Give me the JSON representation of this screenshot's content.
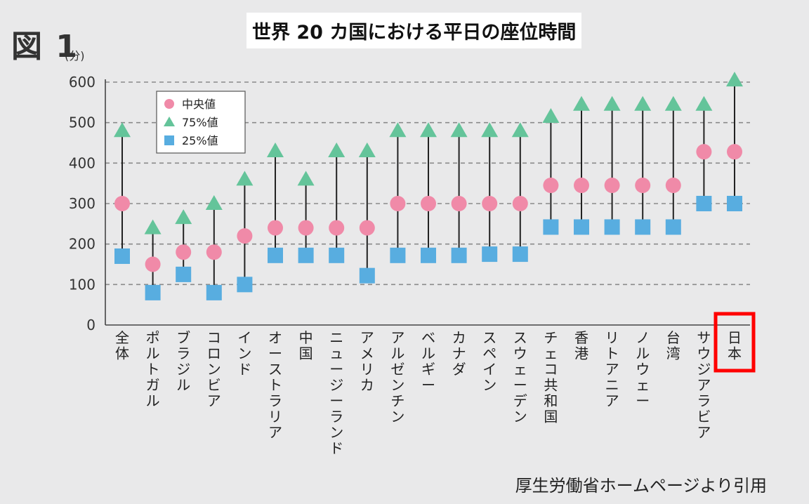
{
  "figure_label": "図 1",
  "title": "世界 20 カ国における平日の座位時間",
  "source_note": "厚生労働省ホームページより引用",
  "chart_data": {
    "type": "scatter",
    "title": "世界 20 カ国における平日の座位時間",
    "ylabel": "(分)",
    "xlabel": "",
    "ylim": [
      0,
      600
    ],
    "yticks": [
      0,
      100,
      200,
      300,
      400,
      500,
      600
    ],
    "grid": true,
    "legend_position": "top-left",
    "highlight_category": "日本",
    "highlight_color": "#ff0000",
    "categories": [
      "全体",
      "ポルトガル",
      "ブラジル",
      "コロンビア",
      "インド",
      "オーストラリア",
      "中国",
      "ニュージーランド",
      "アメリカ",
      "アルゼンチン",
      "ベルギー",
      "カナダ",
      "スペイン",
      "スウェーデン",
      "チェコ共和国",
      "香港",
      "リトアニア",
      "ノルウェー",
      "台湾",
      "サウジアラビア",
      "日本"
    ],
    "series": [
      {
        "name": "中央値",
        "marker": "circle",
        "color": "#f08aa8",
        "values": [
          300,
          150,
          180,
          180,
          220,
          240,
          240,
          240,
          240,
          300,
          300,
          300,
          300,
          300,
          345,
          345,
          345,
          345,
          345,
          428,
          428
        ]
      },
      {
        "name": "75%値",
        "marker": "triangle",
        "color": "#64c49a",
        "values": [
          480,
          240,
          265,
          300,
          360,
          430,
          360,
          430,
          430,
          480,
          480,
          480,
          480,
          480,
          515,
          545,
          545,
          545,
          545,
          545,
          605
        ]
      },
      {
        "name": "25%値",
        "marker": "square",
        "color": "#58ade0",
        "values": [
          170,
          80,
          125,
          80,
          100,
          172,
          172,
          172,
          122,
          172,
          172,
          172,
          175,
          175,
          242,
          242,
          242,
          242,
          242,
          300,
          300
        ]
      }
    ]
  }
}
